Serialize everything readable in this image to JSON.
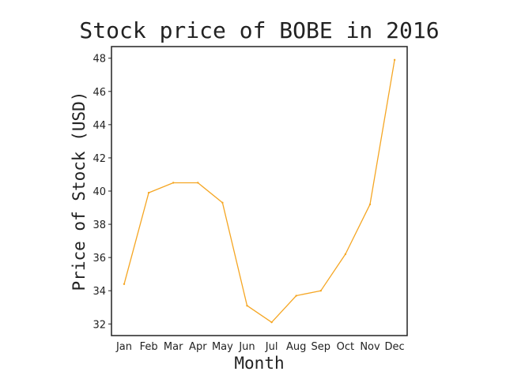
{
  "chart_data": {
    "type": "line",
    "title": "Stock price of BOBE in 2016",
    "xlabel": "Month",
    "ylabel": "Price of Stock (USD)",
    "categories": [
      "Jan",
      "Feb",
      "Mar",
      "Apr",
      "May",
      "Jun",
      "Jul",
      "Aug",
      "Sep",
      "Oct",
      "Nov",
      "Dec"
    ],
    "series": [
      {
        "values": [
          34.4,
          39.9,
          40.5,
          40.5,
          39.3,
          33.1,
          32.1,
          33.7,
          34.0,
          36.2,
          39.2,
          47.9
        ],
        "color": "#f5a623"
      }
    ],
    "yticks": [
      32,
      34,
      36,
      38,
      40,
      42,
      44,
      46,
      48
    ],
    "ylim": [
      31.3,
      48.7
    ],
    "grid": false,
    "legend": "none"
  }
}
